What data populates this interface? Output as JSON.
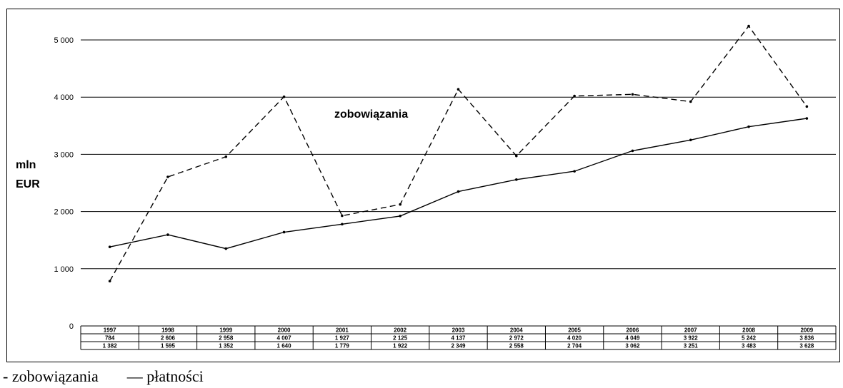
{
  "chart_data": {
    "type": "line",
    "ylabel": "mln EUR",
    "ylabel_lines": [
      "mln",
      "EUR"
    ],
    "ylim": [
      0,
      5500
    ],
    "yticks": [
      0,
      1000,
      2000,
      3000,
      4000,
      5000
    ],
    "ytick_labels": [
      "0",
      "1 000",
      "2 000",
      "3 000",
      "4 000",
      "5 000"
    ],
    "grid": true,
    "categories": [
      "1997",
      "1998",
      "1999",
      "2000",
      "2001",
      "2002",
      "2003",
      "2004",
      "2005",
      "2006",
      "2007",
      "2008",
      "2009"
    ],
    "annotation": "zobowiązania",
    "series": [
      {
        "name": "zobowiązania",
        "style": "dashed",
        "color": "#000000",
        "values": [
          784,
          2606,
          2958,
          4007,
          1927,
          2125,
          4137,
          2972,
          4020,
          4049,
          3922,
          5242,
          3836
        ],
        "labels": [
          "784",
          "2 606",
          "2 958",
          "4 007",
          "1 927",
          "2 125",
          "4 137",
          "2 972",
          "4 020",
          "4 049",
          "3 922",
          "5 242",
          "3 836"
        ]
      },
      {
        "name": "płatności",
        "style": "solid",
        "color": "#000000",
        "values": [
          1382,
          1595,
          1352,
          1640,
          1779,
          1922,
          2349,
          2558,
          2704,
          3062,
          3251,
          3483,
          3628
        ],
        "labels": [
          "1 382",
          "1 595",
          "1 352",
          "1 640",
          "1 779",
          "1 922",
          "2 349",
          "2 558",
          "2 704",
          "3 062",
          "3 251",
          "3 483",
          "3 628"
        ]
      }
    ]
  },
  "legend": {
    "item1": "- zobowiązania",
    "item2": "— płatności"
  }
}
